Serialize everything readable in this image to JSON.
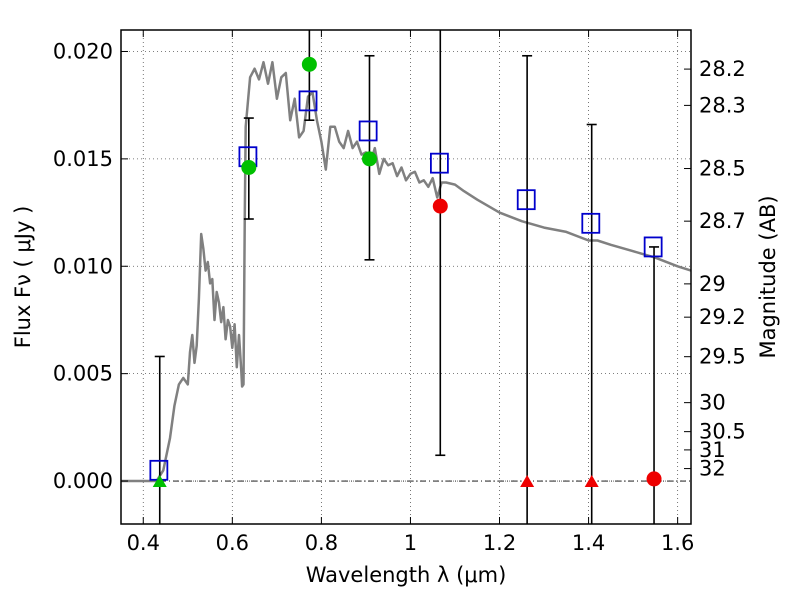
{
  "chart_data": {
    "type": "scatter",
    "xlabel": "Wavelength  λ (μm)",
    "ylabel": "Flux  Fν  ( μJy )",
    "y2label": "Magnitude (AB)",
    "xlim": [
      0.35,
      1.63
    ],
    "ylim": [
      -0.002,
      0.021
    ],
    "grid": true,
    "x_ticks": [
      0.4,
      0.6,
      0.8,
      1.0,
      1.2,
      1.4,
      1.6
    ],
    "x_tick_labels": [
      "0.4",
      "0.6",
      "0.8",
      "1",
      "1.2",
      "1.4",
      "1.6"
    ],
    "y_ticks": [
      0.0,
      0.005,
      0.01,
      0.015,
      0.02
    ],
    "y_tick_labels": [
      "0.000",
      "0.005",
      "0.010",
      "0.015",
      "0.020"
    ],
    "magnitude_ticks": [
      {
        "label": "28.2",
        "flux": 0.01918
      },
      {
        "label": "28.3",
        "flux": 0.01749
      },
      {
        "label": "28.5",
        "flux": 0.01455
      },
      {
        "label": "28.7",
        "flux": 0.0121
      },
      {
        "label": "29",
        "flux": 0.00918
      },
      {
        "label": "29.2",
        "flux": 0.00763
      },
      {
        "label": "29.5",
        "flux": 0.00579
      },
      {
        "label": "30",
        "flux": 0.00365
      },
      {
        "label": "30.5",
        "flux": 0.0023
      },
      {
        "label": "31",
        "flux": 0.00145
      },
      {
        "label": "32",
        "flux": 0.00058
      }
    ],
    "model_spectrum": {
      "color": "#808080",
      "x": [
        0.35,
        0.43,
        0.445,
        0.46,
        0.47,
        0.48,
        0.49,
        0.5,
        0.505,
        0.51,
        0.515,
        0.52,
        0.525,
        0.53,
        0.535,
        0.54,
        0.545,
        0.55,
        0.555,
        0.56,
        0.565,
        0.57,
        0.575,
        0.58,
        0.585,
        0.59,
        0.595,
        0.6,
        0.605,
        0.61,
        0.615,
        0.62,
        0.622,
        0.625,
        0.628,
        0.63,
        0.64,
        0.65,
        0.66,
        0.67,
        0.68,
        0.69,
        0.7,
        0.71,
        0.72,
        0.73,
        0.74,
        0.75,
        0.76,
        0.77,
        0.78,
        0.79,
        0.8,
        0.81,
        0.82,
        0.83,
        0.84,
        0.85,
        0.86,
        0.87,
        0.88,
        0.89,
        0.9,
        0.91,
        0.92,
        0.93,
        0.94,
        0.95,
        0.96,
        0.97,
        0.98,
        0.99,
        1.0,
        1.01,
        1.02,
        1.03,
        1.04,
        1.05,
        1.06,
        1.07,
        1.08,
        1.1,
        1.12,
        1.15,
        1.2,
        1.25,
        1.3,
        1.35,
        1.4,
        1.42,
        1.45,
        1.5,
        1.55,
        1.6,
        1.63
      ],
      "y": [
        0.0,
        0.0,
        0.0005,
        0.002,
        0.0035,
        0.0045,
        0.0048,
        0.0045,
        0.006,
        0.0068,
        0.0055,
        0.0063,
        0.0085,
        0.0115,
        0.0108,
        0.0098,
        0.0102,
        0.0092,
        0.0094,
        0.0075,
        0.0088,
        0.0083,
        0.0074,
        0.0081,
        0.0066,
        0.0075,
        0.0072,
        0.0062,
        0.0073,
        0.0053,
        0.0068,
        0.0052,
        0.0044,
        0.0045,
        0.0125,
        0.0165,
        0.0188,
        0.0192,
        0.0187,
        0.0195,
        0.0185,
        0.0195,
        0.0178,
        0.0188,
        0.019,
        0.0168,
        0.0178,
        0.016,
        0.0163,
        0.0179,
        0.0181,
        0.0168,
        0.0158,
        0.0145,
        0.0165,
        0.0165,
        0.0158,
        0.0155,
        0.0163,
        0.0155,
        0.0158,
        0.0152,
        0.0153,
        0.0148,
        0.0155,
        0.0143,
        0.015,
        0.0147,
        0.0148,
        0.0142,
        0.0146,
        0.014,
        0.0143,
        0.0144,
        0.0139,
        0.014,
        0.0137,
        0.0141,
        0.0132,
        0.0139,
        0.0139,
        0.0138,
        0.0135,
        0.0131,
        0.0125,
        0.0121,
        0.0118,
        0.0116,
        0.0112,
        0.0112,
        0.011,
        0.0107,
        0.0104,
        0.01,
        0.0098
      ]
    },
    "series": [
      {
        "name": "",
        "marker": "open-square",
        "color": "#0000cc",
        "points": [
          {
            "x": 0.435,
            "y": 0.0005
          },
          {
            "x": 0.635,
            "y": 0.0151
          },
          {
            "x": 0.77,
            "y": 0.0177
          },
          {
            "x": 0.905,
            "y": 0.0163
          },
          {
            "x": 1.065,
            "y": 0.0148
          },
          {
            "x": 1.26,
            "y": 0.0131
          },
          {
            "x": 1.405,
            "y": 0.012
          },
          {
            "x": 1.545,
            "y": 0.0109
          }
        ]
      },
      {
        "name": "",
        "marker": "circle",
        "color": "#00c000",
        "points": [
          {
            "x": 0.637,
            "y": 0.0146
          },
          {
            "x": 0.773,
            "y": 0.0194
          },
          {
            "x": 0.908,
            "y": 0.015
          }
        ]
      },
      {
        "name": "",
        "marker": "circle",
        "color": "#ee0000",
        "points": [
          {
            "x": 1.067,
            "y": 0.0128
          },
          {
            "x": 1.547,
            "y": 0.0001
          }
        ]
      },
      {
        "name": "",
        "marker": "triangle-up",
        "color": "#00c000",
        "points": [
          {
            "x": 0.437,
            "y": 0.0
          }
        ]
      },
      {
        "name": "",
        "marker": "triangle-up",
        "color": "#ee0000",
        "points": [
          {
            "x": 1.262,
            "y": 0.0
          },
          {
            "x": 1.407,
            "y": 0.0
          }
        ]
      }
    ],
    "error_bars": [
      {
        "x": 0.437,
        "low": -0.002,
        "high": 0.0058
      },
      {
        "x": 0.637,
        "low": 0.0122,
        "high": 0.0169
      },
      {
        "x": 0.773,
        "low": 0.0168,
        "high": 0.021
      },
      {
        "x": 0.908,
        "low": 0.0103,
        "high": 0.0198
      },
      {
        "x": 1.067,
        "low": 0.0012,
        "high": 0.021
      },
      {
        "x": 1.262,
        "low": -0.002,
        "high": 0.0198
      },
      {
        "x": 1.407,
        "low": -0.002,
        "high": 0.0166
      },
      {
        "x": 1.547,
        "low": -0.002,
        "high": 0.0109
      }
    ]
  }
}
